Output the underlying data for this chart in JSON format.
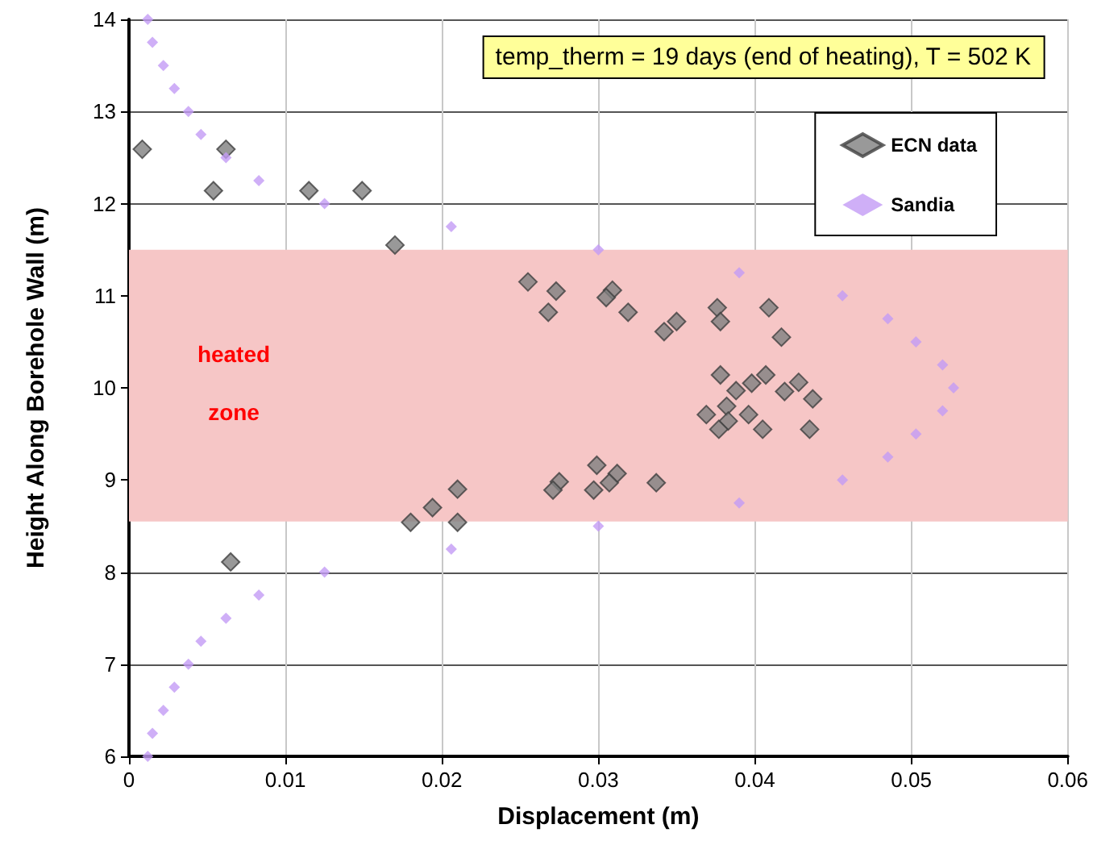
{
  "chart_data": {
    "type": "scatter",
    "title": "temp_therm = 19 days (end of heating), T = 502 K",
    "xlabel": "Displacement (m)",
    "ylabel": "Height Along Borehole Wall (m)",
    "xlim": [
      0,
      0.06
    ],
    "xticks": [
      0,
      0.01,
      0.02,
      0.03,
      0.04,
      0.05,
      0.06
    ],
    "ylim": [
      6,
      14
    ],
    "yticks": [
      6,
      7,
      8,
      9,
      10,
      11,
      12,
      13,
      14
    ],
    "grid": true,
    "legend": "top right",
    "bands": [
      {
        "axis": "y",
        "from": 8.55,
        "to": 11.5,
        "color": "#f6c6c6"
      }
    ],
    "annotations": [
      "heated",
      "zone"
    ],
    "series": [
      {
        "name": "ECN data",
        "color": "#808080",
        "marker": "diamond",
        "x": [
          0.00085,
          0.0062,
          0.0054,
          0.0115,
          0.0149,
          0.017,
          0.0255,
          0.0273,
          0.0268,
          0.0309,
          0.0305,
          0.0319,
          0.0342,
          0.035,
          0.0376,
          0.0378,
          0.0409,
          0.0417,
          0.0378,
          0.0388,
          0.0398,
          0.0407,
          0.0419,
          0.0428,
          0.0437,
          0.0369,
          0.0382,
          0.0383,
          0.0377,
          0.0396,
          0.0405,
          0.0435,
          0.0299,
          0.0312,
          0.0307,
          0.0297,
          0.0275,
          0.0271,
          0.0337,
          0.021,
          0.0194,
          0.018,
          0.021,
          0.0065
        ],
        "values": [
          12.59,
          12.59,
          12.14,
          12.14,
          12.14,
          11.55,
          11.15,
          11.05,
          10.82,
          11.06,
          10.98,
          10.82,
          10.61,
          10.72,
          10.87,
          10.72,
          10.87,
          10.55,
          10.14,
          9.97,
          10.05,
          10.14,
          9.96,
          10.06,
          9.88,
          9.71,
          9.8,
          9.64,
          9.55,
          9.71,
          9.55,
          9.55,
          9.16,
          9.07,
          8.97,
          8.89,
          8.98,
          8.89,
          8.97,
          8.9,
          8.7,
          8.54,
          8.54,
          8.11
        ]
      },
      {
        "name": "Sandia",
        "color": "#c39bf5",
        "marker": "diamond",
        "x": [
          0.0012,
          0.0015,
          0.0022,
          0.0029,
          0.0038,
          0.0046,
          0.0062,
          0.0083,
          0.0125,
          0.0206,
          0.03,
          0.039,
          0.0456,
          0.0485,
          0.0503,
          0.052,
          0.0527,
          0.052,
          0.0503,
          0.0485,
          0.0456,
          0.039,
          0.03,
          0.0206,
          0.0125,
          0.0083,
          0.0062,
          0.0046,
          0.0038,
          0.0029,
          0.0022,
          0.0015,
          0.0012
        ],
        "values": [
          6,
          6.25,
          6.5,
          6.75,
          7,
          7.25,
          7.5,
          7.75,
          8,
          8.25,
          8.5,
          8.75,
          9,
          9.25,
          9.5,
          9.75,
          10,
          10.25,
          10.5,
          10.75,
          11,
          11.25,
          11.5,
          11.75,
          12,
          12.25,
          12.5,
          12.75,
          13,
          13.25,
          13.5,
          13.75,
          14
        ]
      }
    ]
  }
}
